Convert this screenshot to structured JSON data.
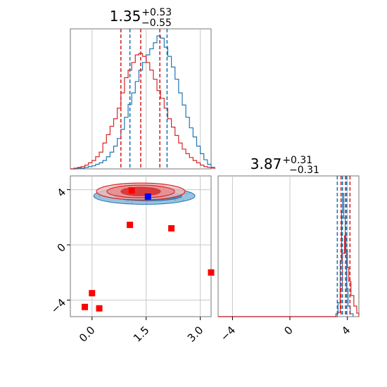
{
  "chart_data": [
    {
      "type": "histogram",
      "panel": "top-left",
      "title": {
        "value": "1.35",
        "upper": "+0.53",
        "lower": "−0.55"
      },
      "xlim": [
        -0.6,
        3.3
      ],
      "bins_start": -0.6,
      "bin_width": 0.1,
      "series": [
        {
          "name": "",
          "color": "#1f77b4",
          "counts": [
            0,
            0,
            1,
            1,
            2,
            3,
            4,
            6,
            8,
            11,
            16,
            22,
            30,
            40,
            52,
            68,
            85,
            100,
            115,
            130,
            140,
            150,
            158,
            166,
            175,
            172,
            160,
            148,
            134,
            118,
            100,
            84,
            68,
            54,
            42,
            30,
            20,
            12,
            6,
            2
          ]
        },
        {
          "name": "",
          "color": "#d62728",
          "counts": [
            0,
            1,
            2,
            3,
            5,
            8,
            11,
            16,
            22,
            34,
            45,
            56,
            66,
            80,
            100,
            120,
            130,
            140,
            150,
            152,
            148,
            140,
            130,
            118,
            103,
            93,
            80,
            66,
            55,
            44,
            34,
            26,
            20,
            15,
            11,
            8,
            5,
            3,
            2,
            1
          ]
        }
      ],
      "quantile_lines": [
        {
          "color": "#d62728",
          "x": [
            0.8,
            1.35,
            1.88
          ]
        },
        {
          "color": "#1f77b4",
          "x": [
            1.05,
            2.08
          ]
        }
      ]
    },
    {
      "type": "scatter",
      "panel": "bottom-left",
      "xlim": [
        -0.6,
        3.3
      ],
      "ylim": [
        -5.2,
        5.0
      ],
      "xticks": [
        "0.0",
        "1.5",
        "3.0"
      ],
      "yticks": [
        "4",
        "0",
        "−4"
      ],
      "xtick_values": [
        0,
        1.5,
        3
      ],
      "ytick_values": [
        4,
        0,
        -4
      ],
      "density": {
        "blue_center": [
          1.45,
          3.55
        ],
        "red_center": [
          1.35,
          3.87
        ]
      },
      "markers_red": [
        [
          1.1,
          3.95
        ],
        [
          1.05,
          1.45
        ],
        [
          2.2,
          1.2
        ],
        [
          3.3,
          -2.0
        ],
        [
          0.0,
          -3.5
        ],
        [
          -0.2,
          -4.5
        ],
        [
          0.2,
          -4.6
        ]
      ],
      "marker_blue": [
        1.55,
        3.5
      ]
    },
    {
      "type": "histogram",
      "panel": "bottom-right",
      "title": {
        "value": "3.87",
        "upper": "+0.31",
        "lower": "−0.31"
      },
      "xlim": [
        -5.0,
        4.8
      ],
      "xticks": [
        "−4",
        "0",
        "4"
      ],
      "xtick_values": [
        -4,
        0,
        4
      ],
      "quantile_lines": [
        {
          "color": "#d62728",
          "x": [
            3.56,
            3.87,
            4.18
          ]
        },
        {
          "color": "#1f77b4",
          "x": [
            3.3,
            3.66,
            3.95
          ]
        }
      ]
    }
  ],
  "colors": {
    "blue": "#1f77b4",
    "red": "#d62728",
    "grid": "#c8c8c8",
    "axis": "#777777"
  }
}
